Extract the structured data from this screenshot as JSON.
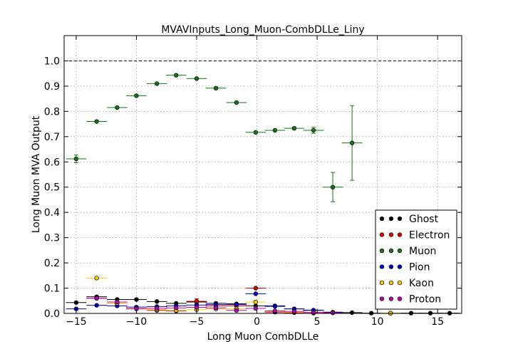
{
  "chart_data": {
    "type": "scatter",
    "title": "MVAVInputs_Long_Muon-CombDLLe_Liny",
    "xlabel": "Long Muon CombDLLe",
    "ylabel": "Long Muon MVA Output",
    "xlim": [
      -16,
      17
    ],
    "ylim": [
      0,
      1.1
    ],
    "x_ticks": [
      -15,
      -10,
      -5,
      0,
      5,
      10,
      15
    ],
    "x_tick_labels": [
      "−15",
      "−10",
      "−5",
      "0",
      "5",
      "10",
      "15"
    ],
    "y_ticks": [
      0.0,
      0.1,
      0.2,
      0.3,
      0.4,
      0.5,
      0.6,
      0.7,
      0.8,
      0.9,
      1.0
    ],
    "y_tick_labels": [
      "0.0",
      "0.1",
      "0.2",
      "0.3",
      "0.4",
      "0.5",
      "0.6",
      "0.7",
      "0.8",
      "0.9",
      "1.0"
    ],
    "reference_line_y": 1.0,
    "grid": true,
    "legend_position": "lower-right",
    "series": [
      {
        "name": "Ghost",
        "color": "#000000",
        "points": [
          {
            "x": -15.0,
            "xerr": 0.85,
            "y": 0.043
          },
          {
            "x": -13.3,
            "xerr": 0.85,
            "y": 0.066
          },
          {
            "x": -11.6,
            "xerr": 0.85,
            "y": 0.055
          },
          {
            "x": -10.0,
            "xerr": 0.85,
            "y": 0.055
          },
          {
            "x": -8.3,
            "xerr": 0.85,
            "y": 0.047
          },
          {
            "x": -6.7,
            "xerr": 0.85,
            "y": 0.04
          },
          {
            "x": -5.0,
            "xerr": 0.85,
            "y": 0.045
          },
          {
            "x": -3.4,
            "xerr": 0.85,
            "y": 0.04
          },
          {
            "x": -1.7,
            "xerr": 0.85,
            "y": 0.038
          },
          {
            "x": -0.1,
            "xerr": 0.85,
            "y": 0.03
          },
          {
            "x": 1.5,
            "xerr": 0.85,
            "y": 0.03
          },
          {
            "x": 3.1,
            "xerr": 0.85,
            "y": 0.018
          },
          {
            "x": 4.7,
            "xerr": 0.85,
            "y": 0.013
          },
          {
            "x": 6.3,
            "xerr": 0.85,
            "y": 0.005
          },
          {
            "x": 7.9,
            "xerr": 0.85,
            "y": 0.003
          },
          {
            "x": 9.5,
            "xerr": 0.85,
            "y": 0.001
          },
          {
            "x": 11.1,
            "xerr": 0.85,
            "y": 0.001
          },
          {
            "x": 12.8,
            "xerr": 0.85,
            "y": 0.001
          },
          {
            "x": 14.4,
            "xerr": 0.85,
            "y": 0.001
          },
          {
            "x": 16.0,
            "xerr": 0.85,
            "y": 0.001
          }
        ]
      },
      {
        "name": "Electron",
        "color": "#dd0000",
        "points": [
          {
            "x": -13.3,
            "xerr": 0.85,
            "y": 0.06
          },
          {
            "x": -11.6,
            "xerr": 0.85,
            "y": 0.04
          },
          {
            "x": -10.0,
            "xerr": 0.85,
            "y": 0.02
          },
          {
            "x": -8.3,
            "xerr": 0.85,
            "y": 0.012
          },
          {
            "x": -6.7,
            "xerr": 0.85,
            "y": 0.01
          },
          {
            "x": -5.0,
            "xerr": 0.85,
            "y": 0.048,
            "yerr": 0.01
          },
          {
            "x": -3.4,
            "xerr": 0.85,
            "y": 0.03
          },
          {
            "x": -1.7,
            "xerr": 0.85,
            "y": 0.03
          },
          {
            "x": -0.1,
            "xerr": 0.85,
            "y": 0.1
          },
          {
            "x": 1.5,
            "xerr": 0.85,
            "y": 0.005
          },
          {
            "x": 3.1,
            "xerr": 0.85,
            "y": 0.003
          },
          {
            "x": 4.7,
            "xerr": 0.85,
            "y": 0.001
          }
        ]
      },
      {
        "name": "Muon",
        "color": "#117711",
        "points": [
          {
            "x": -15.0,
            "xerr": 0.85,
            "y": 0.612,
            "yerr": 0.015
          },
          {
            "x": -13.3,
            "xerr": 0.85,
            "y": 0.76
          },
          {
            "x": -11.6,
            "xerr": 0.85,
            "y": 0.815
          },
          {
            "x": -10.0,
            "xerr": 0.85,
            "y": 0.862
          },
          {
            "x": -8.3,
            "xerr": 0.85,
            "y": 0.91
          },
          {
            "x": -6.7,
            "xerr": 0.85,
            "y": 0.943
          },
          {
            "x": -5.0,
            "xerr": 0.85,
            "y": 0.93
          },
          {
            "x": -3.4,
            "xerr": 0.85,
            "y": 0.892
          },
          {
            "x": -1.7,
            "xerr": 0.85,
            "y": 0.835
          },
          {
            "x": -0.1,
            "xerr": 0.85,
            "y": 0.717
          },
          {
            "x": 1.5,
            "xerr": 0.85,
            "y": 0.725
          },
          {
            "x": 3.1,
            "xerr": 0.85,
            "y": 0.733
          },
          {
            "x": 4.7,
            "xerr": 0.85,
            "y": 0.725,
            "yerr": 0.012
          },
          {
            "x": 6.3,
            "xerr": 0.85,
            "y": 0.5,
            "yerr": 0.058
          },
          {
            "x": 7.9,
            "xerr": 0.85,
            "y": 0.675,
            "yerr": 0.148
          }
        ]
      },
      {
        "name": "Pion",
        "color": "#0000cc",
        "points": [
          {
            "x": -15.0,
            "xerr": 0.85,
            "y": 0.018
          },
          {
            "x": -13.3,
            "xerr": 0.85,
            "y": 0.032
          },
          {
            "x": -11.6,
            "xerr": 0.85,
            "y": 0.03
          },
          {
            "x": -10.0,
            "xerr": 0.85,
            "y": 0.025
          },
          {
            "x": -8.3,
            "xerr": 0.85,
            "y": 0.027
          },
          {
            "x": -6.7,
            "xerr": 0.85,
            "y": 0.03
          },
          {
            "x": -5.0,
            "xerr": 0.85,
            "y": 0.033
          },
          {
            "x": -3.4,
            "xerr": 0.85,
            "y": 0.035
          },
          {
            "x": -1.7,
            "xerr": 0.85,
            "y": 0.035
          },
          {
            "x": -0.1,
            "xerr": 0.85,
            "y": 0.078
          },
          {
            "x": 1.5,
            "xerr": 0.85,
            "y": 0.028
          },
          {
            "x": 3.1,
            "xerr": 0.85,
            "y": 0.018
          },
          {
            "x": 4.7,
            "xerr": 0.85,
            "y": 0.012
          },
          {
            "x": 6.3,
            "xerr": 0.85,
            "y": 0.003
          }
        ]
      },
      {
        "name": "Kaon",
        "color": "#ffcc00",
        "points": [
          {
            "x": -13.3,
            "xerr": 0.85,
            "y": 0.14
          },
          {
            "x": -11.6,
            "xerr": 0.85,
            "y": 0.04
          },
          {
            "x": -10.0,
            "xerr": 0.85,
            "y": 0.02
          },
          {
            "x": -8.3,
            "xerr": 0.85,
            "y": 0.015
          },
          {
            "x": -6.7,
            "xerr": 0.85,
            "y": 0.012
          },
          {
            "x": -5.0,
            "xerr": 0.85,
            "y": 0.015
          },
          {
            "x": -3.4,
            "xerr": 0.85,
            "y": 0.018
          },
          {
            "x": -1.7,
            "xerr": 0.85,
            "y": 0.018
          },
          {
            "x": -0.1,
            "xerr": 0.85,
            "y": 0.045
          },
          {
            "x": 1.5,
            "xerr": 0.85,
            "y": 0.008
          },
          {
            "x": 3.1,
            "xerr": 0.85,
            "y": 0.005
          },
          {
            "x": 4.7,
            "xerr": 0.85,
            "y": 0.003
          },
          {
            "x": 11.1,
            "xerr": 0.85,
            "y": 0.001
          }
        ]
      },
      {
        "name": "Proton",
        "color": "#bb00bb",
        "points": [
          {
            "x": -13.3,
            "xerr": 0.85,
            "y": 0.06
          },
          {
            "x": -11.6,
            "xerr": 0.85,
            "y": 0.045
          },
          {
            "x": -10.0,
            "xerr": 0.85,
            "y": 0.018
          },
          {
            "x": -8.3,
            "xerr": 0.85,
            "y": 0.02
          },
          {
            "x": -6.7,
            "xerr": 0.85,
            "y": 0.022
          },
          {
            "x": -5.0,
            "xerr": 0.85,
            "y": 0.024
          },
          {
            "x": -3.4,
            "xerr": 0.85,
            "y": 0.022
          },
          {
            "x": -1.7,
            "xerr": 0.85,
            "y": 0.012
          },
          {
            "x": -0.1,
            "xerr": 0.85,
            "y": 0.02
          },
          {
            "x": 1.5,
            "xerr": 0.85,
            "y": 0.01
          },
          {
            "x": 3.1,
            "xerr": 0.85,
            "y": 0.008
          },
          {
            "x": 4.7,
            "xerr": 0.85,
            "y": 0.004
          },
          {
            "x": 6.3,
            "xerr": 0.85,
            "y": 0.002
          }
        ]
      }
    ]
  }
}
